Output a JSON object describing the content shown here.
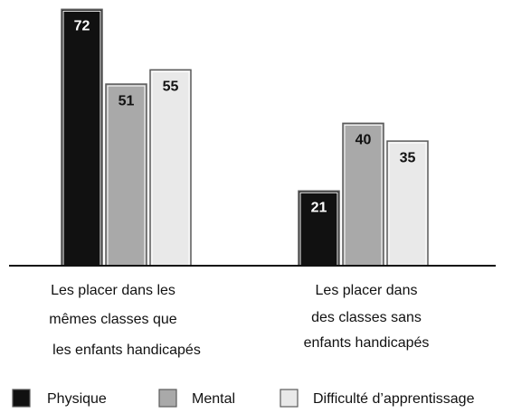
{
  "chart_data": {
    "type": "bar",
    "categories": [
      [
        "Les placer dans les",
        "mêmes classes que",
        "les enfants handicapés"
      ],
      [
        "Les placer dans",
        "des classes sans",
        "enfants handicapés"
      ]
    ],
    "series": [
      {
        "name": "Physique",
        "color": "#111111",
        "values": [
          72,
          21
        ]
      },
      {
        "name": "Mental",
        "color": "#a9a9a9",
        "values": [
          51,
          40
        ]
      },
      {
        "name": "Difficulté d’apprentissage",
        "color": "#e9e9e9",
        "values": [
          55,
          35
        ]
      }
    ]
  }
}
